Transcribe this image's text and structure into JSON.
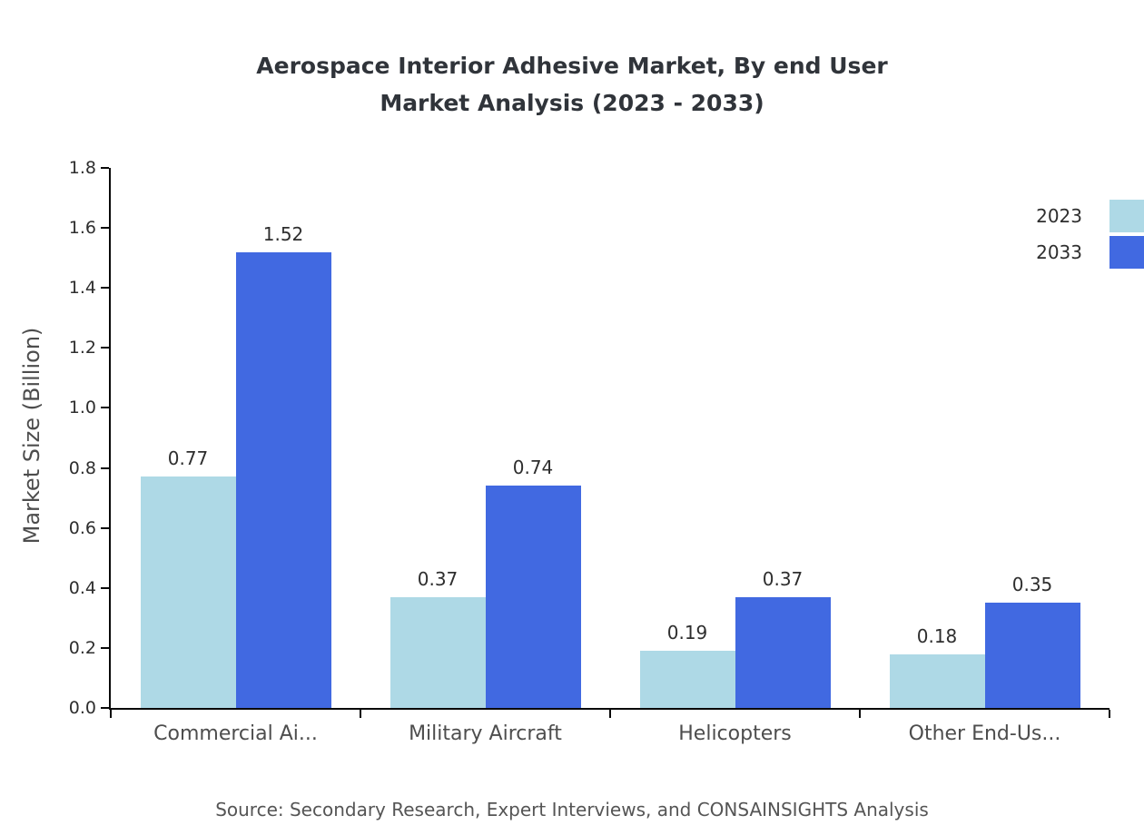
{
  "title": {
    "line1": "Aerospace Interior Adhesive Market, By end User",
    "line2": "Market Analysis (2023 - 2033)"
  },
  "source": "Source: Secondary Research, Expert Interviews, and CONSAINSIGHTS Analysis",
  "chart_data": {
    "type": "bar",
    "title": "Aerospace Interior Adhesive Market, By end User Market Analysis (2023 - 2033)",
    "xlabel": "",
    "ylabel": "Market Size (Billion)",
    "categories": [
      "Commercial Ai...",
      "Military Aircraft",
      "Helicopters",
      "Other End-Us..."
    ],
    "series": [
      {
        "name": "2023",
        "color": "#aed9e6",
        "values": [
          0.77,
          0.37,
          0.19,
          0.18
        ]
      },
      {
        "name": "2033",
        "color": "#4169e1",
        "values": [
          1.52,
          0.74,
          0.37,
          0.35
        ]
      }
    ],
    "ylim": [
      0,
      1.8
    ],
    "yticks": [
      0.0,
      0.2,
      0.4,
      0.6,
      0.8,
      1.0,
      1.2,
      1.4,
      1.6,
      1.8
    ],
    "grid": false,
    "legend_position": "top-right",
    "value_labels": true
  }
}
